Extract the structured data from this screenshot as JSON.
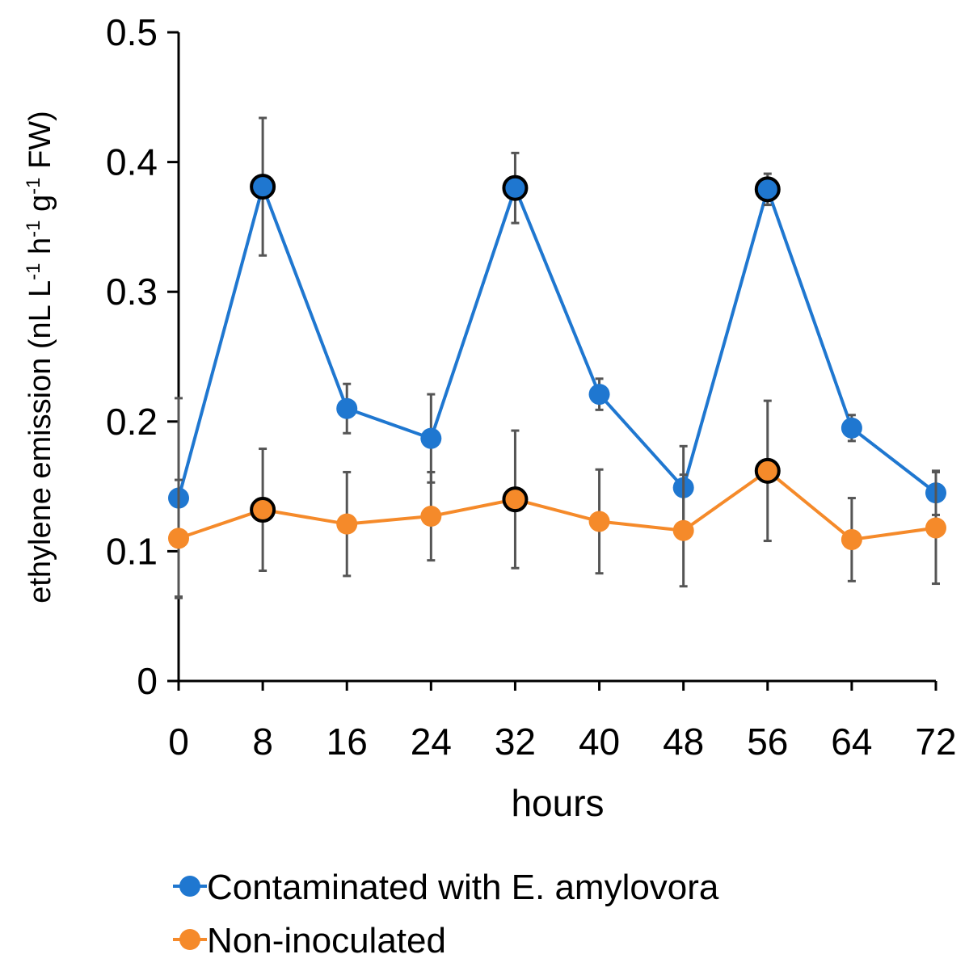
{
  "chart_data": {
    "type": "line",
    "title": "",
    "xlabel": "hours",
    "ylabel": {
      "prefix": "ethylene emission (nL L",
      "sup1": "-1",
      "mid1": " h",
      "sup2": "-1",
      "mid2": " g",
      "sup3": "-1",
      "suffix": " FW)"
    },
    "x": [
      0,
      8,
      16,
      24,
      32,
      40,
      48,
      56,
      64,
      72
    ],
    "x_tick_labels": [
      "0",
      "8",
      "16",
      "24",
      "32",
      "40",
      "48",
      "56",
      "64",
      "72"
    ],
    "y_tick_labels": [
      "0",
      "0.1",
      "0.2",
      "0.3",
      "0.4",
      "0.5"
    ],
    "y_ticks": [
      0,
      0.1,
      0.2,
      0.3,
      0.4,
      0.5
    ],
    "xlim": [
      0,
      72
    ],
    "ylim": [
      0,
      0.5
    ],
    "grid": false,
    "legend_position": "bottom",
    "series": [
      {
        "name": "Contaminated with E. amylovora",
        "color": "#1f77d0",
        "values": [
          0.141,
          0.381,
          0.21,
          0.187,
          0.38,
          0.221,
          0.149,
          0.379,
          0.195,
          0.145
        ],
        "error": [
          0.077,
          0.053,
          0.019,
          0.034,
          0.027,
          0.012,
          0.032,
          0.012,
          0.01,
          0.017
        ],
        "highlighted": [
          false,
          true,
          false,
          false,
          true,
          false,
          false,
          true,
          false,
          false
        ]
      },
      {
        "name": "Non-inoculated",
        "color": "#f58a2a",
        "values": [
          0.11,
          0.132,
          0.121,
          0.127,
          0.14,
          0.123,
          0.116,
          0.162,
          0.109,
          0.118
        ],
        "error": [
          0.045,
          0.047,
          0.04,
          0.034,
          0.053,
          0.04,
          0.043,
          0.054,
          0.032,
          0.043
        ],
        "highlighted": [
          false,
          true,
          false,
          false,
          true,
          false,
          false,
          true,
          false,
          false
        ]
      }
    ]
  }
}
